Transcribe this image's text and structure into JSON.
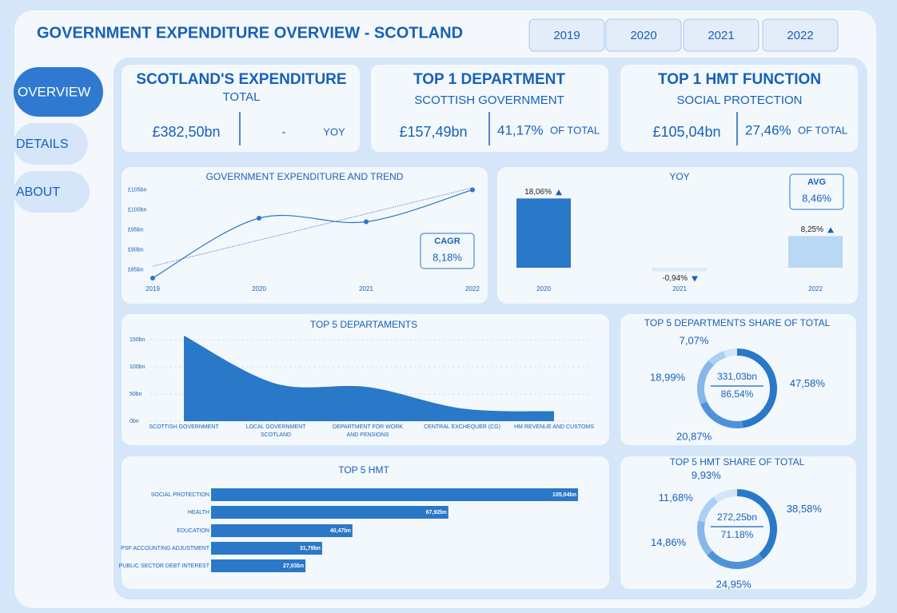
{
  "header": {
    "title": "GOVERNMENT EXPENDITURE OVERVIEW - SCOTLAND"
  },
  "year_buttons": [
    "2019",
    "2020",
    "2021",
    "2022"
  ],
  "nav": [
    "OVERVIEW",
    "DETAILS",
    "ABOUT"
  ],
  "kpis": [
    {
      "title": "SCOTLAND'S EXPENDITURE",
      "subtitle": "TOTAL",
      "value": "£382,50bn",
      "change": "-",
      "change_label": "YOY"
    },
    {
      "title": "TOP 1 DEPARTMENT",
      "subtitle": "SCOTTISH GOVERNMENT",
      "value": "£157,49bn",
      "share": "41,17%",
      "share_label": "OF TOTAL"
    },
    {
      "title": "TOP 1 HMT FUNCTION",
      "subtitle": "SOCIAL PROTECTION",
      "value": "£105,04bn",
      "share": "27,46%",
      "share_label": "OF TOTAL"
    }
  ],
  "trend": {
    "type": "line",
    "title": "GOVERNMENT EXPENDITURE AND TREND",
    "categories": [
      "2019",
      "2020",
      "2021",
      "2022"
    ],
    "values": [
      82.9,
      97.9,
      97.0,
      105.0
    ],
    "ylim": [
      82.5,
      106
    ],
    "yticks": [
      {
        "value": 85,
        "label": "£85bn"
      },
      {
        "value": 90,
        "label": "£90bn"
      },
      {
        "value": 95,
        "label": "£95bn"
      },
      {
        "value": 100,
        "label": "£100bn"
      },
      {
        "value": 105,
        "label": "£105bn"
      }
    ],
    "color": "#2a78c8",
    "kpi_label": "CAGR",
    "kpi_value": "8,18%"
  },
  "yoy": {
    "type": "bar",
    "title": "YOY",
    "categories": [
      "2020",
      "2021",
      "2022"
    ],
    "values": [
      18.06,
      -0.94,
      8.25
    ],
    "value_labels": [
      "18,06%",
      "-0,94%",
      "8,25%"
    ],
    "colors": [
      "#2a78c8",
      "#dce9f7",
      "#b9d8f3"
    ],
    "kpi_label": "AVG",
    "kpi_value": "8,46%"
  },
  "departments": {
    "type": "area",
    "title": "TOP 5 DEPARTAMENTS",
    "categories": [
      "SCOTTISH GOVERNMENT",
      "LOCAL GOVERNMENT SCOTLAND",
      "DEPARTMENT FOR WORK AND PENSIONS",
      "CENTRAL EXCHEQUER (CG)",
      "HM REVENUE AND CUSTOMS"
    ],
    "values": [
      157.49,
      69.09,
      62.86,
      23.4,
      18.17
    ],
    "ylim": [
      0,
      155
    ],
    "yticks": [
      {
        "value": 0,
        "label": "0bn"
      },
      {
        "value": 50,
        "label": "50bn"
      },
      {
        "value": 100,
        "label": "100bn"
      },
      {
        "value": 150,
        "label": "150bn"
      }
    ],
    "color": "#2a78c8"
  },
  "departments_share": {
    "type": "donut",
    "title": "TOP 5 DEPARTMENTS SHARE OF TOTAL",
    "values": [
      47.58,
      20.87,
      18.99,
      7.07,
      5.49
    ],
    "value_labels": [
      "47,58%",
      "20,87%",
      "18,99%",
      "7,07%",
      null
    ],
    "colors": [
      "#2a78c8",
      "#4e92da",
      "#86b6ea",
      "#acd0f3",
      "#d3e6f9"
    ],
    "center_value": "331,03bn",
    "center_share": "86,54%"
  },
  "hmt": {
    "type": "hbar",
    "title": "TOP 5 HMT",
    "categories": [
      "SOCIAL PROTECTION",
      "HEALTH",
      "EDUCATION",
      "PSF ACCOUNTING ADJUSTMENT",
      "PUBLIC SECTOR DEBT INTEREST"
    ],
    "values": [
      105.04,
      67.92,
      40.47,
      31.79,
      27.03
    ],
    "value_labels": [
      "105,04bn",
      "67,92bn",
      "40,47bn",
      "31,79bn",
      "27,03bn"
    ],
    "color": "#2a78c8"
  },
  "hmt_share": {
    "type": "donut",
    "title": "TOP 5 HMT SHARE OF TOTAL",
    "values": [
      38.58,
      24.95,
      14.86,
      11.68,
      9.93
    ],
    "value_labels": [
      "38,58%",
      "24,95%",
      "14,86%",
      "11,68%",
      "9,93%"
    ],
    "colors": [
      "#2a78c8",
      "#4e92da",
      "#86b6ea",
      "#acd0f3",
      "#d3e6f9"
    ],
    "center_value": "272,25bn",
    "center_share": "71.18%"
  }
}
